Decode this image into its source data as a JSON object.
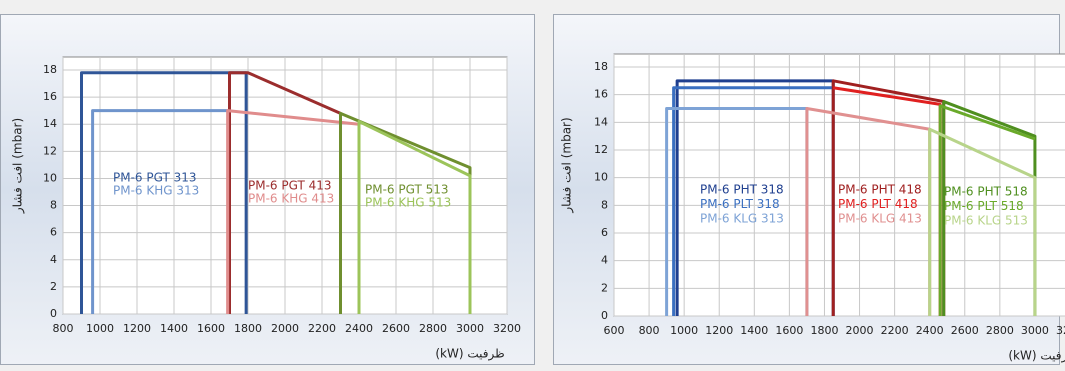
{
  "chart_data": [
    {
      "type": "line",
      "xlabel": "(kW) ظرفیت",
      "ylabel": "افت فشار (mbar)",
      "xlim": [
        800,
        3200
      ],
      "xticks": [
        800,
        1000,
        1200,
        1400,
        1600,
        1800,
        2000,
        2200,
        2400,
        2600,
        2800,
        3000,
        3200
      ],
      "ylim": [
        0,
        18
      ],
      "yticks": [
        0,
        2,
        4,
        6,
        8,
        10,
        12,
        14,
        16,
        18
      ],
      "grid": true,
      "series": [
        {
          "name": "PM-6 PGT 313",
          "color": "#2f5597",
          "x": [
            900,
            900,
            1790,
            1790
          ],
          "values": [
            0,
            17.8,
            17.8,
            0
          ]
        },
        {
          "name": "PM-6 KHG 313",
          "color": "#6f94cc",
          "x": [
            960,
            960,
            1700,
            1700
          ],
          "values": [
            0,
            15,
            15,
            0
          ]
        },
        {
          "name": "PM-6 PGT 413",
          "color": "#9b2d2d",
          "x": [
            1700,
            1700,
            1800,
            2300,
            2300
          ],
          "values": [
            0,
            17.8,
            17.8,
            14.8,
            0
          ]
        },
        {
          "name": "PM-6 KHG 413",
          "color": "#e08c8c",
          "x": [
            1690,
            1690,
            2400,
            2400
          ],
          "values": [
            0,
            15,
            14,
            0
          ]
        },
        {
          "name": "PM-6 PGT 513",
          "color": "#6f8f2f",
          "x": [
            2300,
            2300,
            3000,
            3000
          ],
          "values": [
            0,
            14.8,
            10.8,
            0
          ]
        },
        {
          "name": "PM-6 KHG 513",
          "color": "#9cc45a",
          "x": [
            2400,
            2400,
            3000,
            3000
          ],
          "values": [
            0,
            14.2,
            10.2,
            0
          ]
        }
      ]
    },
    {
      "type": "line",
      "xlabel": "(kW) ظرفیت",
      "ylabel": "افت فشار (mbar)",
      "xlim": [
        600,
        3200
      ],
      "xticks": [
        600,
        800,
        1000,
        1200,
        1400,
        1600,
        1800,
        2000,
        2200,
        2400,
        2600,
        2800,
        3000,
        3200
      ],
      "ylim": [
        0,
        18
      ],
      "yticks": [
        0,
        2,
        4,
        6,
        8,
        10,
        12,
        14,
        16,
        18
      ],
      "grid": true,
      "series": [
        {
          "name": "PM-6 PHT 318",
          "color": "#1f3f8f",
          "x": [
            960,
            960,
            1850,
            1850
          ],
          "values": [
            0,
            17,
            17,
            0
          ]
        },
        {
          "name": "PM-6 PLT 318",
          "color": "#3a6fc0",
          "x": [
            940,
            940,
            1850
          ],
          "values": [
            0,
            16.5,
            16.5
          ]
        },
        {
          "name": "PM-6 KLG 313",
          "color": "#7ea3d6",
          "x": [
            900,
            900,
            1700,
            1700
          ],
          "values": [
            0,
            15,
            15,
            0
          ]
        },
        {
          "name": "PM-6 PHT 418",
          "color": "#a02020",
          "x": [
            1850,
            1850,
            2480,
            2480
          ],
          "values": [
            0,
            17,
            15.5,
            0
          ]
        },
        {
          "name": "PM-6 PLT 418",
          "color": "#e02020",
          "x": [
            1850,
            2460,
            2460
          ],
          "values": [
            16.5,
            15.3,
            0
          ]
        },
        {
          "name": "PM-6 KLG 413",
          "color": "#e09090",
          "x": [
            1700,
            1700,
            2400,
            2400
          ],
          "values": [
            0,
            15,
            13.5,
            0
          ]
        },
        {
          "name": "PM-6 PHT 518",
          "color": "#4f8f1f",
          "x": [
            2480,
            2480,
            3000,
            3000
          ],
          "values": [
            0,
            15.5,
            13,
            0
          ]
        },
        {
          "name": "PM-6 PLT 518",
          "color": "#6aaa2a",
          "x": [
            2460,
            2460,
            3000
          ],
          "values": [
            0,
            15.2,
            12.8
          ]
        },
        {
          "name": "PM-6 KLG 513",
          "color": "#b8d48a",
          "x": [
            2400,
            2400,
            3000,
            3000
          ],
          "values": [
            0,
            13.5,
            10,
            0
          ]
        }
      ]
    }
  ]
}
